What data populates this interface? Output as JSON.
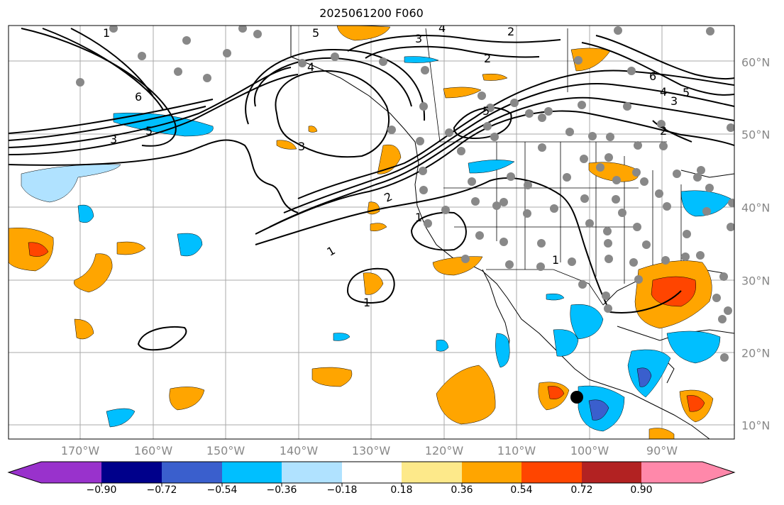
{
  "title": "2025061200 F060",
  "lat_labels": [
    "60°N",
    "50°N",
    "40°N",
    "30°N",
    "20°N",
    "10°N"
  ],
  "lon_labels": [
    "170°W",
    "160°W",
    "150°W",
    "140°W",
    "130°W",
    "120°W",
    "110°W",
    "100°W",
    "90°W"
  ],
  "contour_labels": [
    "1",
    "1",
    "1",
    "1",
    "2",
    "2",
    "2",
    "3",
    "3",
    "3",
    "4",
    "4",
    "5",
    "5",
    "5",
    "6",
    "6",
    "1",
    "2",
    "3",
    "4",
    "5"
  ],
  "colorbar": {
    "tick_labels": [
      "−0.90",
      "−0.72",
      "−0.54",
      "−0.36",
      "−0.18",
      "0.18",
      "0.36",
      "0.54",
      "0.72",
      "0.90"
    ],
    "colors": [
      "#9932cc",
      "#00008b",
      "#3a5fcd",
      "#00bfff",
      "#b0e2ff",
      "#ffffff",
      "#fde98a",
      "#ffa500",
      "#ff4500",
      "#b22222",
      "#ff88aa"
    ]
  },
  "field_colors": {
    "neg_strong": "#3a5fcd",
    "neg": "#00bfff",
    "neg_weak": "#b0e2ff",
    "pos_weak": "#fde98a",
    "pos": "#ffa500",
    "pos_strong": "#ff4500",
    "station": "#888888",
    "marker": "#000000"
  }
}
